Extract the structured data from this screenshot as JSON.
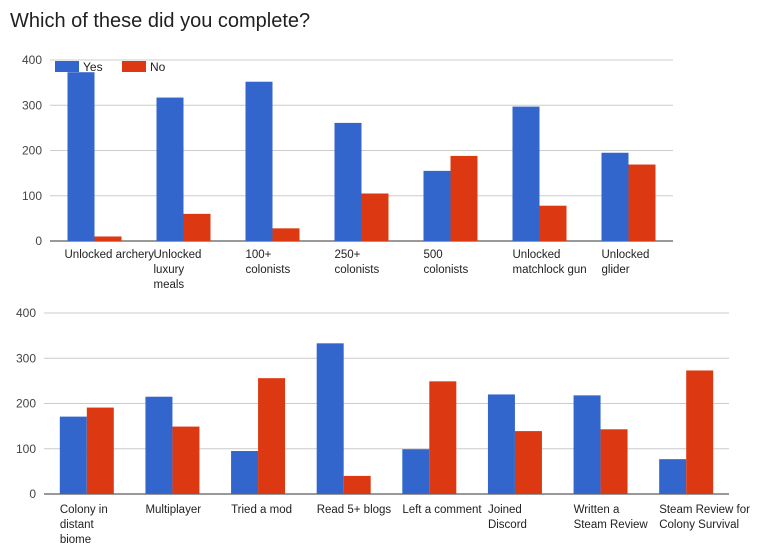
{
  "title": "Which of these did you complete?",
  "colors": {
    "yes": "#3366cc",
    "no": "#dc3912",
    "grid": "#cccccc",
    "axis": "#333333"
  },
  "legend": {
    "placement": "top-left",
    "items": [
      "Yes",
      "No"
    ]
  },
  "chart_data": [
    {
      "type": "bar",
      "title": "",
      "xlabel": "",
      "ylabel": "",
      "ylim": [
        0,
        400
      ],
      "yticks": [
        "0",
        "100",
        "200",
        "300",
        "400"
      ],
      "grid": true,
      "legend": "top-left",
      "categories": [
        [
          "Unlocked archery"
        ],
        [
          "Unlocked",
          "luxury",
          "meals"
        ],
        [
          "100+",
          "colonists"
        ],
        [
          "250+",
          "colonists"
        ],
        [
          "500",
          "colonists"
        ],
        [
          "Unlocked",
          "matchlock gun"
        ],
        [
          "Unlocked",
          "glider"
        ]
      ],
      "series": [
        {
          "name": "Yes",
          "values": [
            373,
            317,
            352,
            261,
            155,
            297,
            195
          ]
        },
        {
          "name": "No",
          "values": [
            10,
            60,
            28,
            105,
            188,
            78,
            169
          ]
        }
      ]
    },
    {
      "type": "bar",
      "title": "",
      "xlabel": "",
      "ylabel": "",
      "ylim": [
        0,
        400
      ],
      "yticks": [
        "0",
        "100",
        "200",
        "300",
        "400"
      ],
      "grid": true,
      "legend": "none",
      "categories": [
        [
          "Colony in",
          "distant",
          "biome"
        ],
        [
          "Multiplayer"
        ],
        [
          "Tried a mod"
        ],
        [
          "Read 5+ blogs"
        ],
        [
          "Left a comment"
        ],
        [
          "Joined",
          "Discord"
        ],
        [
          "Written a",
          "Steam Review"
        ],
        [
          "Steam Review for",
          "Colony Survival"
        ]
      ],
      "series": [
        {
          "name": "Yes",
          "values": [
            171,
            215,
            95,
            333,
            99,
            220,
            218,
            77
          ]
        },
        {
          "name": "No",
          "values": [
            191,
            149,
            256,
            40,
            249,
            139,
            143,
            273
          ]
        }
      ]
    }
  ]
}
